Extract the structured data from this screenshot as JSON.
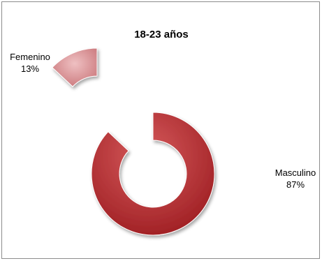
{
  "chart_data": {
    "type": "pie",
    "subtype": "doughnut-exploded",
    "title": "18-23 años",
    "categories": [
      "Femenino",
      "Masculino"
    ],
    "values": [
      13,
      87
    ],
    "labels": [
      "13%",
      "87%"
    ],
    "colors": [
      "#d4868a",
      "#b52a2d"
    ],
    "legend": "none"
  }
}
